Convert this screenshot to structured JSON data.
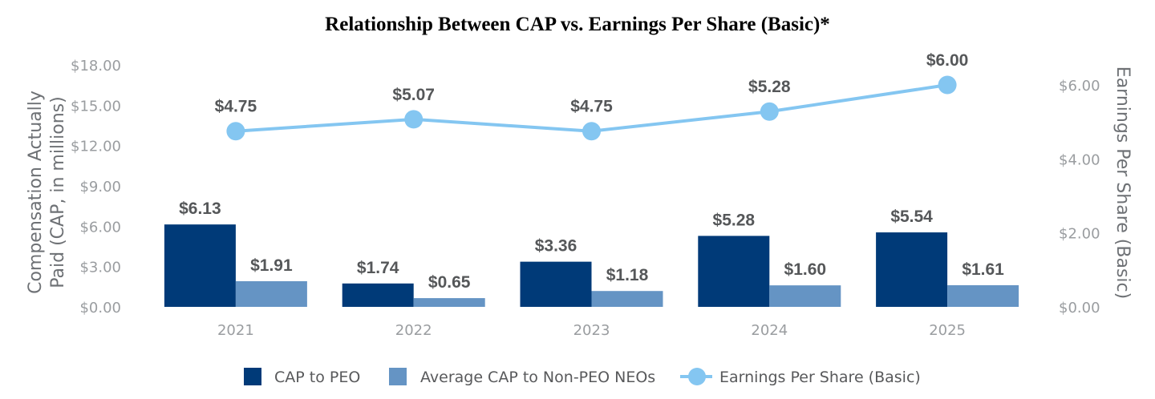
{
  "chart_data": {
    "type": "bar",
    "title": "Relationship Between CAP vs. Earnings Per Share (Basic)*",
    "categories": [
      "2021",
      "2022",
      "2023",
      "2024",
      "2025"
    ],
    "y_left": {
      "label_line1": "Compensation Actually",
      "label_line2": "Paid (CAP, in millions)",
      "ticks": [
        "$0.00",
        "$3.00",
        "$6.00",
        "$9.00",
        "$12.00",
        "$15.00",
        "$18.00"
      ],
      "tick_values": [
        0,
        3,
        6,
        9,
        12,
        15,
        18
      ],
      "ylim": [
        0,
        18
      ]
    },
    "y_right": {
      "label": "Earnings Per Share (Basic)",
      "ticks": [
        "$0.00",
        "$2.00",
        "$4.00",
        "$6.00"
      ],
      "tick_values": [
        0,
        2,
        4,
        6
      ],
      "ylim": [
        0,
        6.5
      ]
    },
    "series": [
      {
        "name": "CAP to PEO",
        "type": "bar",
        "axis": "left",
        "color": "#003a78",
        "values": [
          6.13,
          1.74,
          3.36,
          5.28,
          5.54
        ],
        "labels": [
          "$6.13",
          "$1.74",
          "$3.36",
          "$5.28",
          "$5.54"
        ]
      },
      {
        "name": "Average CAP to Non-PEO NEOs",
        "type": "bar",
        "axis": "left",
        "color": "#6594c4",
        "values": [
          1.91,
          0.65,
          1.18,
          1.6,
          1.61
        ],
        "labels": [
          "$1.91",
          "$0.65",
          "$1.18",
          "$1.60",
          "$1.61"
        ]
      },
      {
        "name": "Earnings Per Share (Basic)",
        "type": "line",
        "axis": "right",
        "color": "#84c6f1",
        "values": [
          4.75,
          5.07,
          4.75,
          5.28,
          6.0
        ],
        "labels": [
          "$4.75",
          "$5.07",
          "$4.75",
          "$5.28",
          "$6.00"
        ]
      }
    ],
    "grid": false,
    "legend_position": "bottom"
  }
}
